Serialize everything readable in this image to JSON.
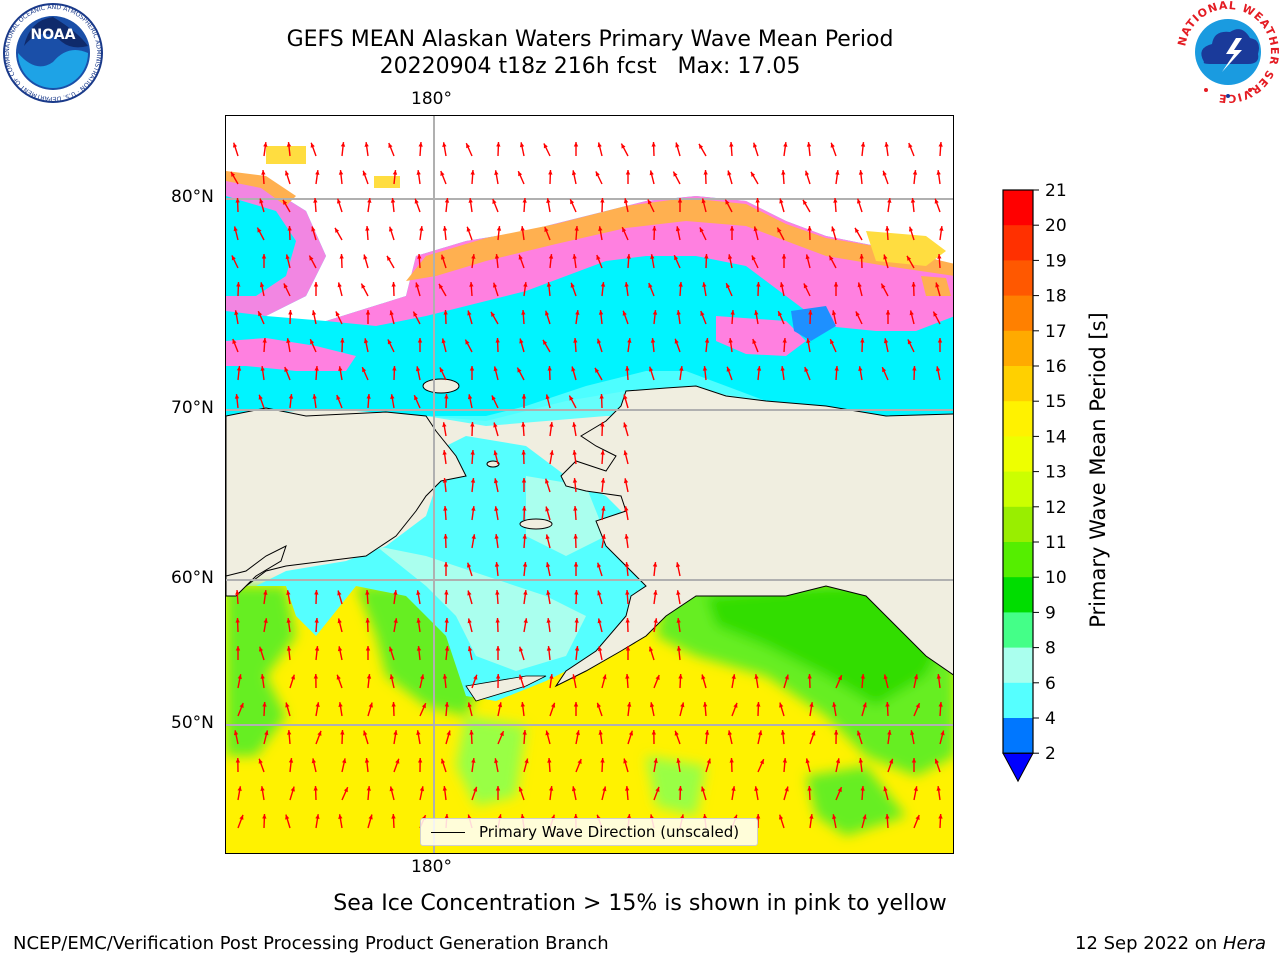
{
  "title_line1": "GEFS MEAN Alaskan Waters Primary Wave Mean Period",
  "title_line2": "20220904 t18z 216h fcst   Max: 17.05",
  "map": {
    "lon_label_top": "180°",
    "lon_label_bottom": "180°",
    "lat_labels": [
      "80°N",
      "70°N",
      "60°N",
      "50°N"
    ],
    "legend_label": "Primary Wave Direction (unscaled)",
    "colors": {
      "land": "#f0eee0",
      "sea_ice_pink": "#ff80e0",
      "sea_ice_orange": "#ffb050",
      "arrow": "#ff0000",
      "grid": "#b0b0b0"
    }
  },
  "colorbar": {
    "label": "Primary Wave Mean Period [s]",
    "ticks": [
      "21",
      "20",
      "19",
      "18",
      "17",
      "16",
      "15",
      "14",
      "13",
      "12",
      "11",
      "10",
      "9",
      "8",
      "6",
      "4",
      "2"
    ],
    "colors_top_to_bottom": [
      "#ff0000",
      "#ff3000",
      "#ff5800",
      "#ff8000",
      "#ffaa00",
      "#ffd000",
      "#fff200",
      "#eeff00",
      "#ccff00",
      "#99ee00",
      "#55ee00",
      "#00dd00",
      "#44ff88",
      "#aaffee",
      "#55ffff",
      "#00eeff",
      "#0077ff"
    ],
    "extend_color": "#0000ff"
  },
  "sea_ice_note": "Sea Ice Concentration > 15% is shown in pink to yellow",
  "footer": {
    "left": "NCEP/EMC/Verification Post Processing Product Generation Branch",
    "date": "12 Sep 2022 on ",
    "host": "Hera"
  },
  "logos": {
    "noaa_text": "NOAA",
    "noaa_ring": "NATIONAL OCEANIC AND ATMOSPHERIC ADMINISTRATION · U.S. DEPARTMENT OF COMMERCE",
    "nws_ring": "NATIONAL WEATHER SERVICE"
  }
}
